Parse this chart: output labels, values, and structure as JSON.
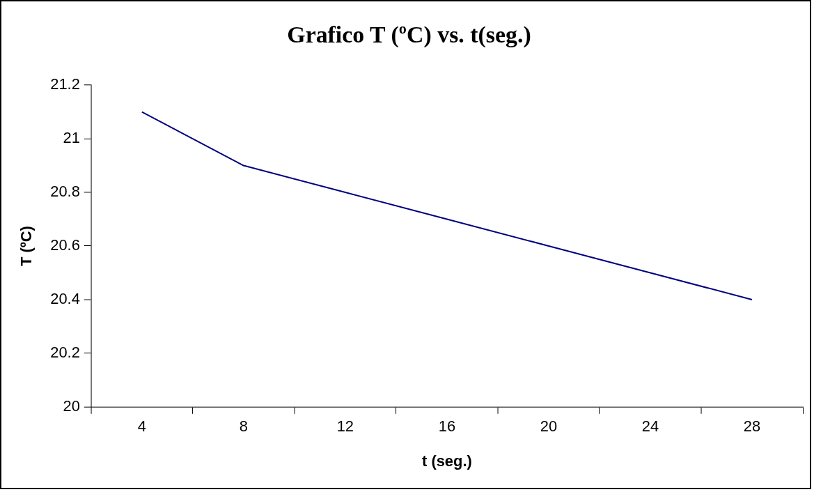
{
  "chart_data": {
    "type": "line",
    "title": "Grafico T (ºC) vs. t(seg.)",
    "xlabel": "t (seg.)",
    "ylabel": "T (ºC)",
    "categories": [
      "4",
      "8",
      "12",
      "16",
      "20",
      "24",
      "28"
    ],
    "series": [
      {
        "color": "#000080",
        "values": [
          21.1,
          20.9,
          20.8,
          20.7,
          20.6,
          20.5,
          20.4
        ]
      }
    ],
    "ylim": [
      20,
      21.2
    ],
    "yticks": [
      20,
      20.2,
      20.4,
      20.6,
      20.8,
      21,
      21.2
    ],
    "grid": false,
    "legend": false,
    "marker": "none",
    "line_style": "solid"
  }
}
